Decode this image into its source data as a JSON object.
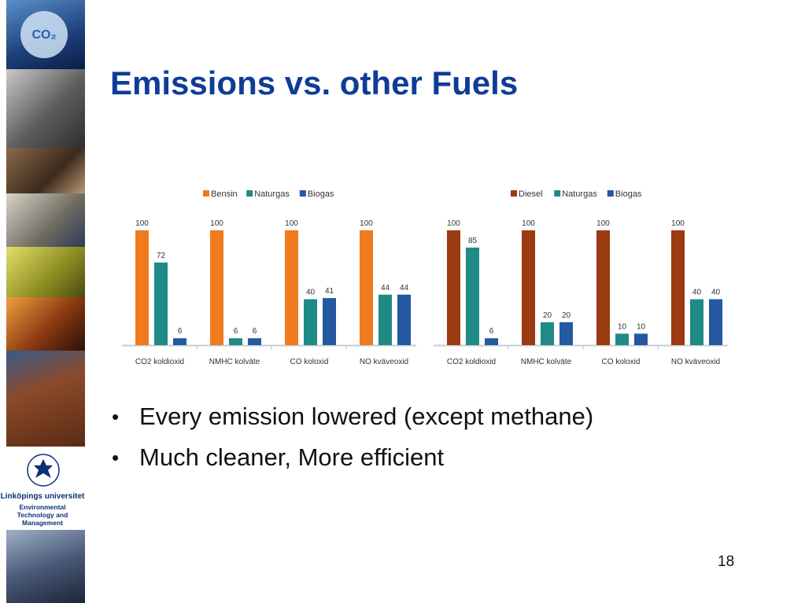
{
  "slide": {
    "title": "Emissions vs. other Fuels",
    "page_number": "18",
    "bullets": [
      "Every emission lowered (except methane)",
      "Much cleaner, More efficient"
    ],
    "logo": {
      "university": "Linköpings universitet",
      "department": "Environmental\nTechnology and\nManagement",
      "sidebar_badge": "CO₂"
    }
  },
  "colors": {
    "title": "#0f3c96",
    "bensin": "#f07a1e",
    "diesel": "#9c3a12",
    "naturgas": "#1f8a86",
    "biogas": "#2458a0"
  },
  "chart_data": [
    {
      "type": "bar",
      "categories": [
        "CO2  koldioxid",
        "NMHC  kolväte",
        "CO  koloxid",
        "NO  kväveoxid"
      ],
      "series": [
        {
          "name": "Bensin",
          "color": "#f07a1e",
          "values": [
            100,
            100,
            100,
            100
          ]
        },
        {
          "name": "Naturgas",
          "color": "#1f8a86",
          "values": [
            72,
            6,
            40,
            44
          ]
        },
        {
          "name": "Biogas",
          "color": "#2458a0",
          "values": [
            6,
            6,
            41,
            44
          ]
        }
      ],
      "ylim": [
        0,
        100
      ],
      "legend": "top-center",
      "grid": false
    },
    {
      "type": "bar",
      "categories": [
        "CO2  koldioxid",
        "NMHC  kolväte",
        "CO  koloxid",
        "NO  kväveoxid"
      ],
      "series": [
        {
          "name": "Diesel",
          "color": "#9c3a12",
          "values": [
            100,
            100,
            100,
            100
          ]
        },
        {
          "name": "Naturgas",
          "color": "#1f8a86",
          "values": [
            85,
            20,
            10,
            40
          ]
        },
        {
          "name": "Biogas",
          "color": "#2458a0",
          "values": [
            6,
            20,
            10,
            40
          ]
        }
      ],
      "ylim": [
        0,
        100
      ],
      "legend": "top-center",
      "grid": false
    }
  ]
}
